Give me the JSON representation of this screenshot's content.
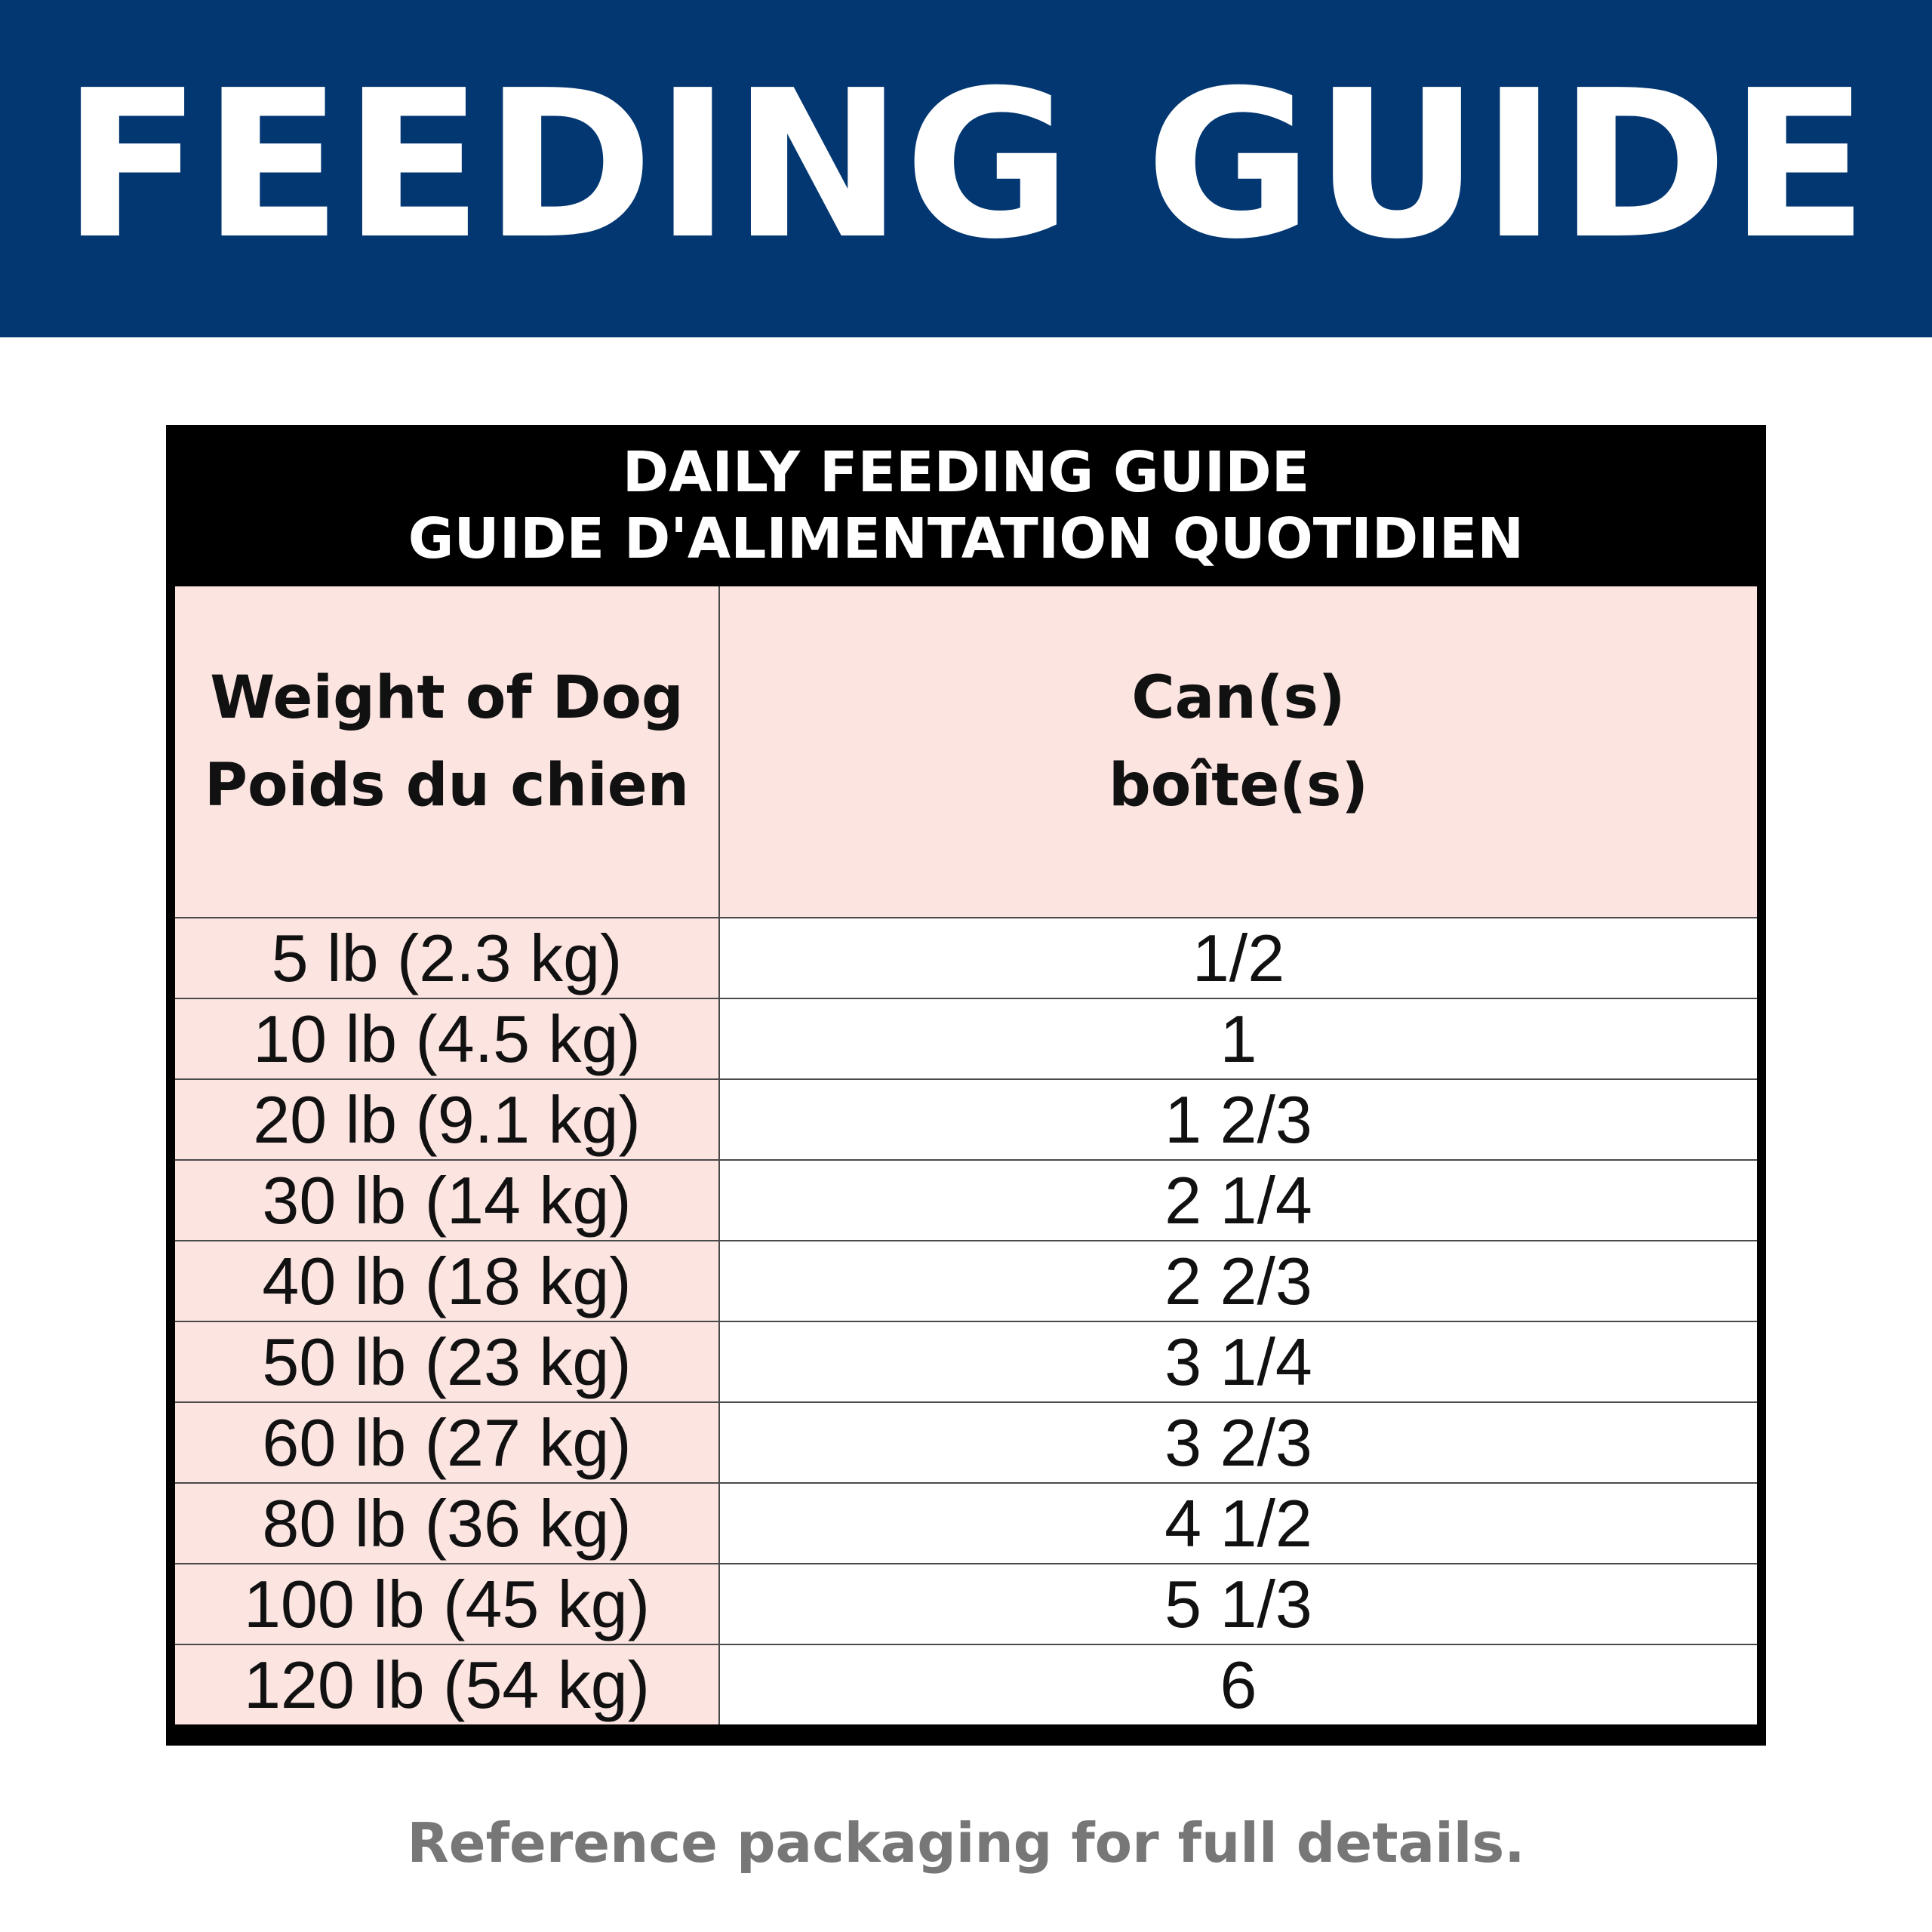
{
  "banner": {
    "title": "FEEDING GUIDE"
  },
  "table": {
    "title_en": "DAILY FEEDING GUIDE",
    "title_fr": "GUIDE D'ALIMENTATION QUOTIDIEN",
    "headers": {
      "weight_en": "Weight of Dog",
      "weight_fr": "Poids du chien",
      "cans_en": "Can(s)",
      "cans_fr": "boîte(s)"
    },
    "rows": [
      {
        "weight": "5 lb (2.3 kg)",
        "cans": "1/2"
      },
      {
        "weight": "10 lb (4.5 kg)",
        "cans": "1"
      },
      {
        "weight": "20 lb (9.1 kg)",
        "cans": "1 2/3"
      },
      {
        "weight": "30 lb (14 kg)",
        "cans": "2 1/4"
      },
      {
        "weight": "40 lb (18 kg)",
        "cans": "2 2/3"
      },
      {
        "weight": "50 lb (23 kg)",
        "cans": "3 1/4"
      },
      {
        "weight": "60 lb (27 kg)",
        "cans": "3 2/3"
      },
      {
        "weight": "80 lb (36 kg)",
        "cans": "4 1/2"
      },
      {
        "weight": "100 lb (45 kg)",
        "cans": "5 1/3"
      },
      {
        "weight": "120 lb (54 kg)",
        "cans": "6"
      }
    ]
  },
  "footer": {
    "note": "Reference packaging for full details."
  },
  "colors": {
    "banner_blue": "#033772",
    "header_black": "#000000",
    "pink": "#fce4e1",
    "footer_gray": "#777777"
  }
}
